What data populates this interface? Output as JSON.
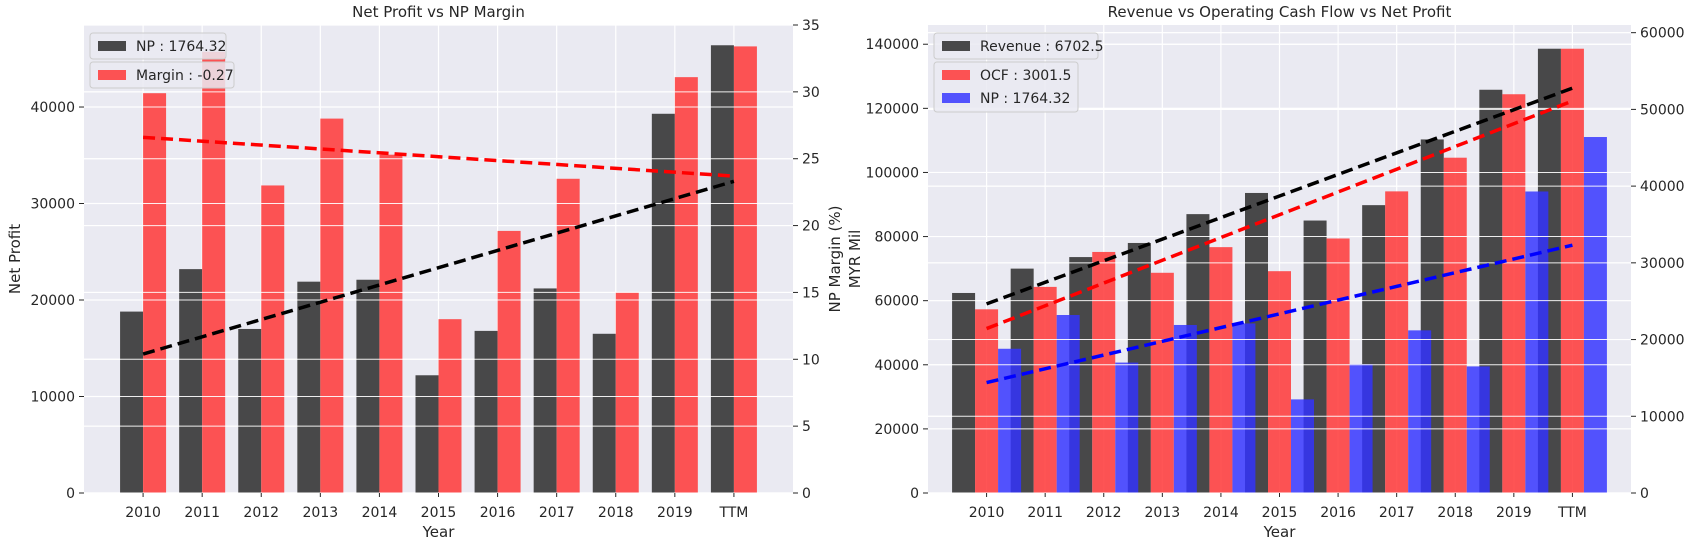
{
  "chart_data": [
    {
      "type": "bar",
      "title": "Net Profit vs NP Margin",
      "xlabel": "Year",
      "ylabel": "Net Profit",
      "ylabel_right": "NP Margin (%)",
      "categories": [
        "2010",
        "2011",
        "2012",
        "2013",
        "2014",
        "2015",
        "2016",
        "2017",
        "2018",
        "2019",
        "TTM"
      ],
      "ylim": [
        0,
        48500
      ],
      "yticks": [
        0,
        10000,
        20000,
        30000,
        40000
      ],
      "ylim_right": [
        0,
        35
      ],
      "yticks_right": [
        0,
        5,
        10,
        15,
        20,
        25,
        30,
        35
      ],
      "grid": true,
      "legend_position": "top-left",
      "series": [
        {
          "name": "NP : 1764.32",
          "axis": "left",
          "color": "#262626",
          "values": [
            18800,
            23200,
            17000,
            21900,
            22100,
            12200,
            16800,
            21200,
            16500,
            39300,
            46400
          ]
        },
        {
          "name": "Margin : -0.27",
          "axis": "right",
          "color": "#ff3333",
          "values": [
            29.9,
            33.0,
            23.0,
            28.0,
            25.3,
            13.0,
            19.6,
            23.5,
            15.0,
            31.1,
            33.4
          ]
        }
      ],
      "trendlines": [
        {
          "axis": "left",
          "color": "#000000",
          "from": [
            "2010",
            14400
          ],
          "to": [
            "TTM",
            32300
          ]
        },
        {
          "axis": "right",
          "color": "#ff0000",
          "from": [
            "2010",
            26.6
          ],
          "to": [
            "TTM",
            23.7
          ]
        }
      ]
    },
    {
      "type": "bar",
      "title": "Revenue vs Operating Cash Flow vs Net Profit",
      "xlabel": "Year",
      "ylabel": "MYR Mil",
      "categories": [
        "2010",
        "2011",
        "2012",
        "2013",
        "2014",
        "2015",
        "2016",
        "2017",
        "2018",
        "2019",
        "TTM"
      ],
      "ylim": [
        0,
        146000
      ],
      "yticks": [
        0,
        20000,
        40000,
        60000,
        80000,
        100000,
        120000,
        140000
      ],
      "ylim_right": [
        0,
        61000
      ],
      "yticks_right": [
        0,
        10000,
        20000,
        30000,
        40000,
        50000,
        60000
      ],
      "grid": true,
      "legend_position": "top-left",
      "series": [
        {
          "name": "Revenue : 6702.5",
          "axis": "left",
          "color": "#262626",
          "values": [
            62400,
            70000,
            73600,
            78000,
            87000,
            93600,
            85000,
            89800,
            110300,
            125800,
            138600
          ]
        },
        {
          "name": "OCF : 3001.5",
          "axis": "left",
          "color": "#ff3333",
          "values": [
            57300,
            64300,
            75200,
            68700,
            76700,
            69200,
            79400,
            94100,
            104600,
            124400,
            138600
          ]
        },
        {
          "name": "NP : 1764.32",
          "axis": "right",
          "color": "#3333ff",
          "values": [
            18800,
            23200,
            17000,
            21900,
            22100,
            12200,
            16800,
            21200,
            16500,
            39300,
            46400
          ]
        }
      ],
      "trendlines": [
        {
          "axis": "left",
          "color": "#000000",
          "from": [
            "2010",
            59000
          ],
          "to": [
            "TTM",
            126300
          ]
        },
        {
          "axis": "left",
          "color": "#ff0000",
          "from": [
            "2010",
            51300
          ],
          "to": [
            "TTM",
            122300
          ]
        },
        {
          "axis": "right",
          "color": "#0000ff",
          "from": [
            "2010",
            14400
          ],
          "to": [
            "TTM",
            32300
          ]
        }
      ]
    }
  ]
}
